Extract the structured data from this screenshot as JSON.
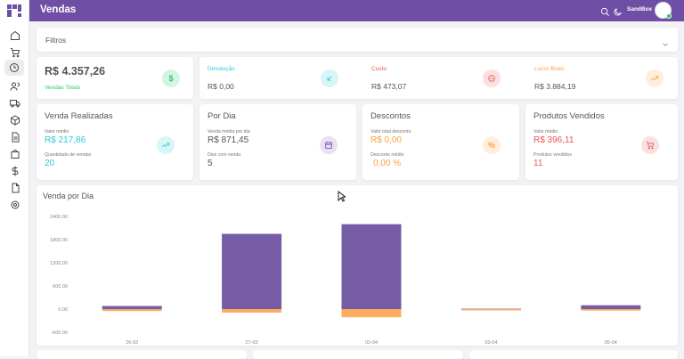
{
  "app": {
    "title": "Vendas",
    "user": "SandBox"
  },
  "colors": {
    "primary": "#6f4fa6",
    "teal": "#2ec9d9",
    "red": "#ea5455",
    "orange": "#ff9f43",
    "green": "#28c76f",
    "bar_purple": "#765ca5",
    "bar_orange": "#ffad5c"
  },
  "sidebar": {
    "items": [
      "home-icon",
      "cart-icon",
      "clock-icon",
      "users-icon",
      "truck-icon",
      "box-icon",
      "file-text-icon",
      "shopping-bag-icon",
      "dollar-icon",
      "file-icon",
      "settings-icon"
    ]
  },
  "filtros": {
    "label": "Filtros"
  },
  "summary": {
    "total": {
      "value": "R$ 4.357,26",
      "label": "Vendas Totais"
    },
    "devolucao": {
      "label": "Devolução",
      "value": "R$ 0,00"
    },
    "custo": {
      "label": "Custo",
      "value": "R$ 473,07"
    },
    "lucro": {
      "label": "Lucro Bruto",
      "value": "R$ 3.884,19"
    }
  },
  "cards": {
    "vendas": {
      "title": "Venda Realizadas",
      "l1": "Valor médio",
      "v1": "R$ 217,86",
      "l2": "Quantidade de vendas",
      "v2": "20"
    },
    "dia": {
      "title": "Por Dia",
      "l1": "Venda média por dia",
      "v1": "R$ 871,45",
      "l2": "Dias com venda",
      "v2": "5"
    },
    "descontos": {
      "title": "Descontos",
      "l1": "Valor total desconto",
      "v1": "R$ 0,00",
      "l2": "Desconto médio",
      "v2": "0,00 %",
      "icon": "%"
    },
    "produtos": {
      "title": "Produtos Vendidos",
      "l1": "Valor médio",
      "v1": "R$ 396,11",
      "l2": "Produtos vendidos",
      "v2": "11"
    }
  },
  "chart": {
    "title": "Venda por Dia"
  },
  "chart_data": {
    "type": "bar",
    "categories": [
      "26-03",
      "27-03",
      "02-04",
      "03-04",
      "05-04"
    ],
    "series": [
      {
        "values": [
          80,
          1950,
          2200,
          10,
          100
        ],
        "color": "#765ca5"
      },
      {
        "values": [
          -50,
          -90,
          -210,
          -15,
          -40
        ],
        "color": "#ffad5c"
      }
    ],
    "yticks": [
      "2400.00",
      "1800.00",
      "1200.00",
      "600.00",
      "0.00",
      "-600.00"
    ],
    "ylim": [
      -600,
      2400
    ]
  }
}
